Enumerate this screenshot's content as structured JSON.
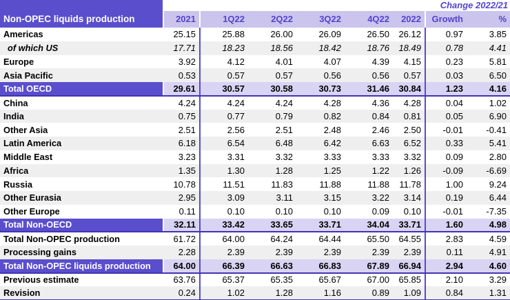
{
  "header": {
    "title": "Non-OPEC liquids production",
    "change_label": "Change 2022/21",
    "columns": [
      "2021",
      "1Q22",
      "2Q22",
      "3Q22",
      "4Q22",
      "2022",
      "Growth",
      "%"
    ]
  },
  "colors": {
    "header_purple": "#5a4ecd",
    "header_lavender": "#cbc4ec",
    "total_row_lavender": "#d9d4f4",
    "accent_text_purple": "#5244d0",
    "rule_dark_purple": "#4134b0",
    "vertical_line_purple": "#564ad2",
    "stripe_gray": "#efefef"
  },
  "rules_after": [
    "Total OECD",
    "Total Non-OECD",
    "Total Non-OPEC liquids production",
    "Revision"
  ],
  "rows": [
    {
      "label": "Americas",
      "type": "normal",
      "values": [
        "25.15",
        "25.88",
        "26.00",
        "26.09",
        "26.50",
        "26.12",
        "0.97",
        "3.85"
      ]
    },
    {
      "label": "of which US",
      "type": "sub",
      "values": [
        "17.71",
        "18.23",
        "18.56",
        "18.42",
        "18.76",
        "18.49",
        "0.78",
        "4.41"
      ]
    },
    {
      "label": "Europe",
      "type": "normal",
      "values": [
        "3.92",
        "4.12",
        "4.01",
        "4.07",
        "4.39",
        "4.15",
        "0.23",
        "5.81"
      ]
    },
    {
      "label": "Asia Pacific",
      "type": "normal",
      "values": [
        "0.53",
        "0.57",
        "0.57",
        "0.56",
        "0.56",
        "0.57",
        "0.03",
        "6.50"
      ]
    },
    {
      "label": "Total OECD",
      "type": "total",
      "values": [
        "29.61",
        "30.57",
        "30.58",
        "30.73",
        "31.46",
        "30.84",
        "1.23",
        "4.16"
      ]
    },
    {
      "label": "China",
      "type": "normal",
      "values": [
        "4.24",
        "4.24",
        "4.24",
        "4.28",
        "4.36",
        "4.28",
        "0.04",
        "1.02"
      ]
    },
    {
      "label": "India",
      "type": "normal",
      "values": [
        "0.75",
        "0.77",
        "0.79",
        "0.82",
        "0.84",
        "0.81",
        "0.05",
        "6.90"
      ]
    },
    {
      "label": "Other Asia",
      "type": "normal",
      "values": [
        "2.51",
        "2.56",
        "2.51",
        "2.48",
        "2.46",
        "2.50",
        "-0.01",
        "-0.41"
      ]
    },
    {
      "label": "Latin America",
      "type": "normal",
      "values": [
        "6.18",
        "6.54",
        "6.48",
        "6.42",
        "6.63",
        "6.52",
        "0.33",
        "5.41"
      ]
    },
    {
      "label": "Middle East",
      "type": "normal",
      "values": [
        "3.23",
        "3.31",
        "3.32",
        "3.33",
        "3.33",
        "3.32",
        "0.09",
        "2.80"
      ]
    },
    {
      "label": "Africa",
      "type": "normal",
      "values": [
        "1.35",
        "1.30",
        "1.28",
        "1.25",
        "1.22",
        "1.26",
        "-0.09",
        "-6.69"
      ]
    },
    {
      "label": "Russia",
      "type": "normal",
      "values": [
        "10.78",
        "11.51",
        "11.83",
        "11.88",
        "11.88",
        "11.78",
        "1.00",
        "9.24"
      ]
    },
    {
      "label": "Other Eurasia",
      "type": "normal",
      "values": [
        "2.95",
        "3.09",
        "3.11",
        "3.15",
        "3.22",
        "3.14",
        "0.19",
        "6.44"
      ]
    },
    {
      "label": "Other Europe",
      "type": "normal",
      "values": [
        "0.11",
        "0.10",
        "0.10",
        "0.10",
        "0.09",
        "0.10",
        "-0.01",
        "-7.35"
      ]
    },
    {
      "label": "Total Non-OECD",
      "type": "total",
      "values": [
        "32.11",
        "33.42",
        "33.65",
        "33.71",
        "34.04",
        "33.71",
        "1.60",
        "4.98"
      ]
    },
    {
      "label": "Total Non-OPEC production",
      "type": "normal",
      "values": [
        "61.72",
        "64.00",
        "64.24",
        "64.44",
        "65.50",
        "64.55",
        "2.83",
        "4.59"
      ]
    },
    {
      "label": "Processing gains",
      "type": "normal",
      "values": [
        "2.28",
        "2.39",
        "2.39",
        "2.39",
        "2.39",
        "2.39",
        "0.11",
        "4.91"
      ]
    },
    {
      "label": "Total Non-OPEC liquids production",
      "type": "total",
      "values": [
        "64.00",
        "66.39",
        "66.63",
        "66.83",
        "67.89",
        "66.94",
        "2.94",
        "4.60"
      ]
    },
    {
      "label": "Previous estimate",
      "type": "normal",
      "values": [
        "63.76",
        "65.37",
        "65.35",
        "65.67",
        "67.00",
        "65.85",
        "2.10",
        "3.29"
      ]
    },
    {
      "label": "Revision",
      "type": "normal",
      "values": [
        "0.24",
        "1.02",
        "1.28",
        "1.16",
        "0.89",
        "1.09",
        "0.84",
        "1.31"
      ]
    }
  ]
}
